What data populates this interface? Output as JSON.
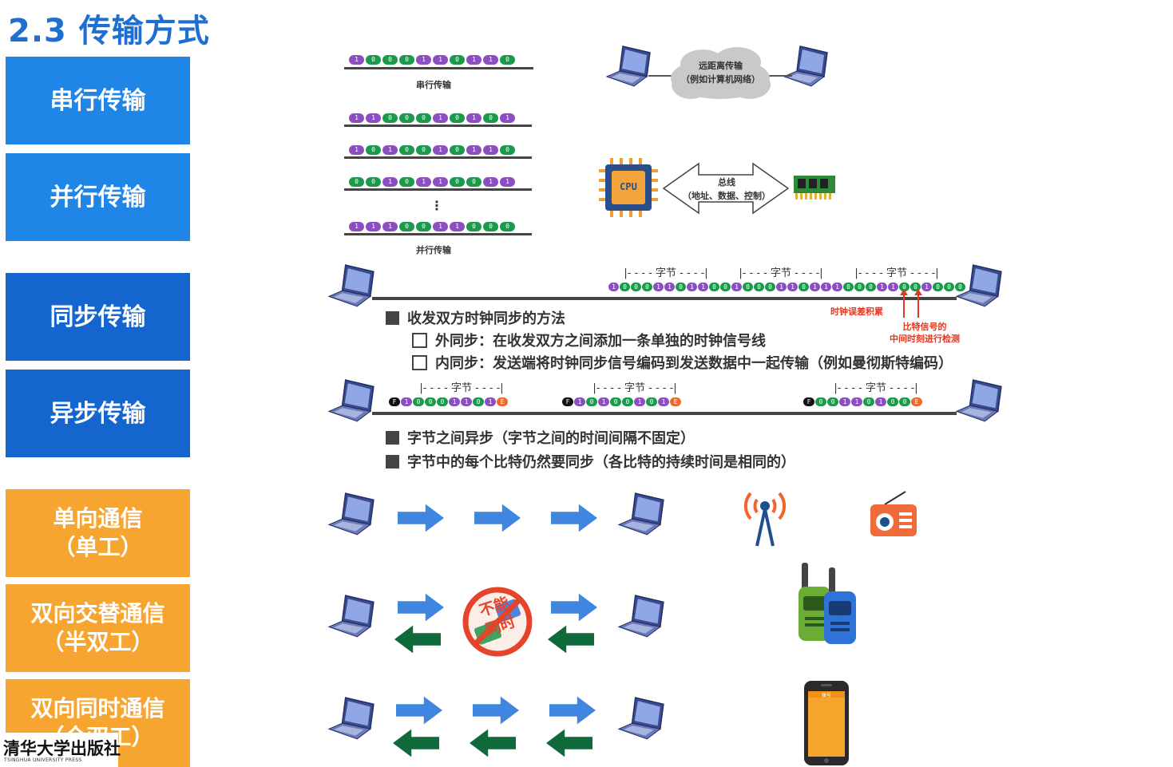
{
  "title": "2.3 传输方式",
  "sidebar": {
    "serial": "串行传输",
    "parallel": "并行传输",
    "sync": "同步传输",
    "async": "异步传输",
    "simplex_line1": "单向通信",
    "simplex_line2": "（单工）",
    "half_line1": "双向交替通信",
    "half_line2": "（半双工）",
    "full_line1": "双向同时通信",
    "full_line2": "（全双工）"
  },
  "serial": {
    "bits": [
      "1",
      "0",
      "0",
      "0",
      "1",
      "1",
      "0",
      "1",
      "1",
      "0"
    ],
    "caption": "串行传输",
    "cloud_line1": "远距离传输",
    "cloud_line2": "（例如计算机网络）"
  },
  "parallel": {
    "rows": [
      [
        "1",
        "1",
        "0",
        "0",
        "0",
        "1",
        "0",
        "1",
        "0",
        "1"
      ],
      [
        "1",
        "0",
        "1",
        "0",
        "0",
        "1",
        "0",
        "1",
        "1",
        "0"
      ],
      [
        "0",
        "0",
        "1",
        "0",
        "1",
        "1",
        "0",
        "0",
        "1",
        "1"
      ],
      [
        "1",
        "1",
        "1",
        "0",
        "0",
        "1",
        "1",
        "0",
        "0",
        "0"
      ]
    ],
    "ellipsis": "⋮",
    "caption": "并行传输",
    "cpu_label": "CPU",
    "bus_line1": "总线",
    "bus_line2": "（地址、数据、控制）"
  },
  "sync": {
    "byte_label": "字节",
    "bits": [
      "1",
      "0",
      "0",
      "0",
      "1",
      "1",
      "0",
      "1",
      "1",
      "0",
      "0",
      "1",
      "0",
      "0",
      "0",
      "1",
      "1",
      "0",
      "1",
      "1",
      "1",
      "0",
      "0",
      "0",
      "1",
      "1",
      "0",
      "0",
      "1",
      "0",
      "0",
      "0"
    ],
    "clock_error": "时钟误差积累",
    "detect_line1": "比特信号的",
    "detect_line2": "中间时刻进行检测",
    "bullet_main": "收发双方时钟同步的方法",
    "bullet_ext": "外同步：在收发双方之间添加一条单独的时钟信号线",
    "bullet_int": "内同步：发送端将时钟同步信号编码到发送数据中一起传输（例如曼彻斯特编码）"
  },
  "async": {
    "byte_label": "字节",
    "start_bit": "F",
    "end_bit": "E",
    "groups": [
      [
        "1",
        "0",
        "0",
        "0",
        "1",
        "1",
        "0",
        "1"
      ],
      [
        "1",
        "0",
        "1",
        "0",
        "0",
        "1",
        "0",
        "1"
      ],
      [
        "0",
        "0",
        "1",
        "1",
        "0",
        "1",
        "0",
        "0"
      ]
    ],
    "bullet1": "字节之间异步（字节之间的时间间隔不固定）",
    "bullet2": "字节中的每个比特仍然要同步（各比特的持续时间是相同的）"
  },
  "duplex": {
    "stamp_line1": "不能",
    "stamp_line2": "同时",
    "phone_header": "拨号"
  },
  "publisher": {
    "name": "清华大学出版社",
    "en": "TSINGHUA UNIVERSITY PRESS"
  },
  "colors": {
    "title": "#1f6fd1",
    "blue_tab": "#1f86e8",
    "dark_tab": "#1565cf",
    "orange_tab": "#f7a531",
    "bit_one": "#8b4fc2",
    "bit_zero": "#1a9a4a",
    "arrow_blue": "#3f86e0",
    "arrow_green": "#10693a"
  }
}
